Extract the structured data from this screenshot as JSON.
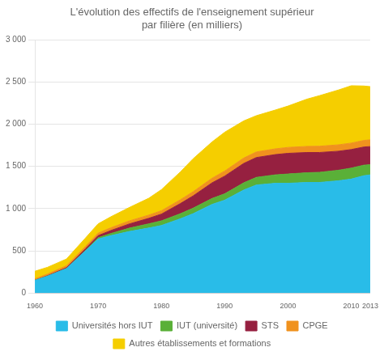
{
  "chart_data": {
    "type": "area",
    "title": "L'évolution des effectifs de l'enseignement supérieur\npar filière (en milliers)",
    "x": [
      1960,
      1962,
      1965,
      1968,
      1970,
      1972,
      1975,
      1978,
      1980,
      1983,
      1985,
      1988,
      1990,
      1993,
      1995,
      1998,
      2000,
      2003,
      2005,
      2008,
      2010,
      2012,
      2013
    ],
    "series": [
      {
        "name": "Universités hors IUT",
        "color": "#29bce8",
        "values": [
          150,
          200,
          290,
          500,
          640,
          680,
          730,
          770,
          800,
          880,
          940,
          1050,
          1100,
          1220,
          1280,
          1300,
          1300,
          1310,
          1310,
          1330,
          1350,
          1390,
          1400
        ]
      },
      {
        "name": "IUT (université)",
        "color": "#5ab038",
        "values": [
          0,
          0,
          0,
          5,
          15,
          25,
          40,
          50,
          55,
          60,
          65,
          70,
          75,
          85,
          90,
          100,
          110,
          115,
          120,
          125,
          130,
          125,
          120
        ]
      },
      {
        "name": "STS",
        "color": "#962040",
        "values": [
          0,
          5,
          10,
          20,
          25,
          35,
          50,
          65,
          80,
          120,
          145,
          185,
          210,
          230,
          235,
          240,
          245,
          240,
          235,
          225,
          220,
          215,
          215
        ]
      },
      {
        "name": "CPGE",
        "color": "#f0921e",
        "values": [
          18,
          20,
          23,
          27,
          30,
          33,
          36,
          38,
          40,
          45,
          50,
          55,
          60,
          64,
          66,
          68,
          70,
          72,
          74,
          76,
          76,
          78,
          80
        ]
      },
      {
        "name": "Autres établissements et formations",
        "color": "#f5ce00",
        "values": [
          90,
          80,
          80,
          100,
          110,
          130,
          160,
          200,
          250,
          330,
          390,
          430,
          460,
          440,
          430,
          460,
          490,
          560,
          600,
          650,
          680,
          645,
          630
        ]
      }
    ],
    "xlim": [
      1960,
      2013
    ],
    "xticks": [
      1960,
      1970,
      1980,
      1990,
      2000,
      2010,
      2013
    ],
    "ylim": [
      0,
      3000
    ],
    "yticks": [
      0,
      500,
      {
        "value": 1000,
        "label": "1 000"
      },
      {
        "value": 1500,
        "label": "1 500"
      },
      {
        "value": 2000,
        "label": "2 000"
      },
      {
        "value": 2500,
        "label": "2 500"
      },
      {
        "value": 3000,
        "label": "3 000"
      }
    ],
    "stacked": true,
    "grid": "y",
    "legend": "bottom"
  }
}
